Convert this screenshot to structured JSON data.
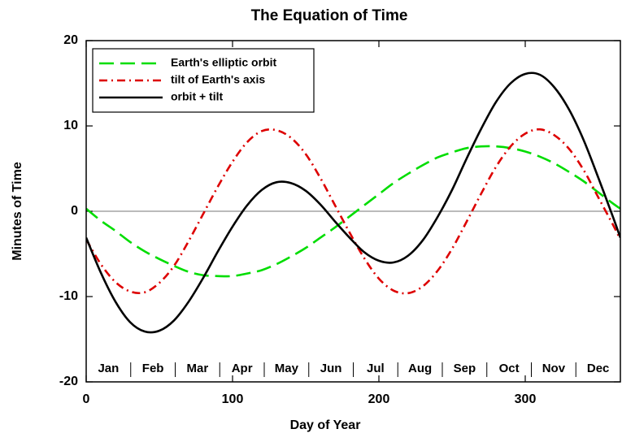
{
  "chart_data": {
    "type": "line",
    "title": "The Equation of Time",
    "xlabel": "Day of Year",
    "ylabel": "Minutes of Time",
    "x": [
      0,
      10,
      20,
      30,
      40,
      50,
      60,
      70,
      80,
      90,
      100,
      110,
      120,
      130,
      140,
      150,
      160,
      170,
      180,
      190,
      200,
      210,
      220,
      230,
      240,
      250,
      260,
      270,
      280,
      290,
      300,
      310,
      320,
      330,
      340,
      350,
      360,
      365
    ],
    "series": [
      {
        "name": "Earth's elliptic orbit",
        "color": "#00dd00",
        "dash": "dashed",
        "values": [
          0.3,
          -1.1,
          -2.3,
          -3.6,
          -4.7,
          -5.6,
          -6.4,
          -7.1,
          -7.5,
          -7.6,
          -7.6,
          -7.3,
          -6.9,
          -6.2,
          -5.3,
          -4.3,
          -3.1,
          -1.9,
          -0.6,
          0.7,
          2.0,
          3.3,
          4.4,
          5.4,
          6.3,
          6.9,
          7.4,
          7.6,
          7.6,
          7.4,
          7.0,
          6.4,
          5.6,
          4.6,
          3.5,
          2.2,
          0.9,
          0.3
        ]
      },
      {
        "name": "tilt of Earth's axis",
        "color": "#dd0000",
        "dash": "dashdot",
        "values": [
          -3.3,
          -6.2,
          -8.3,
          -9.4,
          -9.5,
          -8.4,
          -6.4,
          -3.5,
          -0.3,
          2.9,
          5.8,
          8.1,
          9.4,
          9.5,
          8.6,
          6.7,
          3.9,
          0.7,
          -2.5,
          -5.5,
          -7.9,
          -9.3,
          -9.6,
          -8.8,
          -7.0,
          -4.4,
          -1.2,
          2.1,
          5.2,
          7.6,
          9.1,
          9.6,
          8.9,
          7.3,
          4.8,
          1.6,
          -1.6,
          -3.3
        ]
      },
      {
        "name": "orbit + tilt",
        "color": "#000000",
        "dash": "solid",
        "values": [
          -3.1,
          -7.2,
          -10.6,
          -13.0,
          -14.1,
          -14.0,
          -12.8,
          -10.6,
          -7.8,
          -4.7,
          -1.8,
          0.7,
          2.5,
          3.4,
          3.3,
          2.4,
          0.8,
          -1.2,
          -3.1,
          -4.8,
          -5.8,
          -6.0,
          -5.2,
          -3.4,
          -0.7,
          2.5,
          6.2,
          9.7,
          12.8,
          15.0,
          16.1,
          16.0,
          14.5,
          11.9,
          8.3,
          3.9,
          -0.7,
          -3.1
        ]
      }
    ],
    "months": [
      "Jan",
      "Feb",
      "Mar",
      "Apr",
      "May",
      "Jun",
      "Jul",
      "Aug",
      "Sep",
      "Oct",
      "Nov",
      "Dec"
    ],
    "xlim": [
      0,
      365
    ],
    "ylim": [
      -20,
      20
    ],
    "xticks": [
      0,
      100,
      200,
      300
    ],
    "yticks": [
      -20,
      -10,
      0,
      10,
      20
    ],
    "legend": "upper left"
  }
}
